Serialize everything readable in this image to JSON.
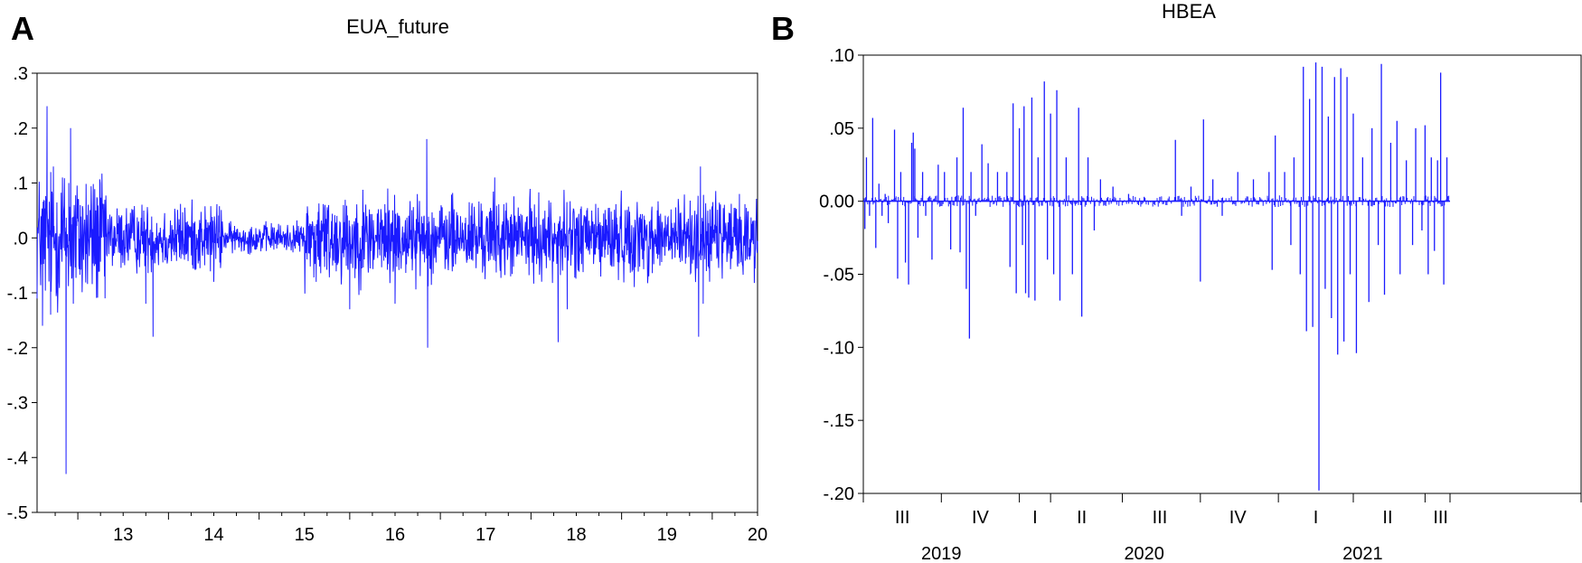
{
  "figure": {
    "panel_labels": [
      "A",
      "B"
    ]
  },
  "chart_data": [
    {
      "type": "line",
      "panel": "A",
      "title": "EUA_future",
      "xlabel": "",
      "ylabel": "",
      "ylim": [
        -0.5,
        0.3
      ],
      "yticks": [
        {
          "value": 0.3,
          "label": ".3"
        },
        {
          "value": 0.2,
          "label": ".2"
        },
        {
          "value": 0.1,
          "label": ".1"
        },
        {
          "value": 0.0,
          "label": ".0"
        },
        {
          "value": -0.1,
          "label": "-.1"
        },
        {
          "value": -0.2,
          "label": "-.2"
        },
        {
          "value": -0.3,
          "label": "-.3"
        },
        {
          "value": -0.4,
          "label": "-.4"
        },
        {
          "value": -0.5,
          "label": "-.5"
        }
      ],
      "xlim": [
        2012.55,
        2020.5
      ],
      "xticks": [
        {
          "value": 2013.0,
          "label": "13"
        },
        {
          "value": 2014.0,
          "label": "14"
        },
        {
          "value": 2015.0,
          "label": "15"
        },
        {
          "value": 2016.0,
          "label": "16"
        },
        {
          "value": 2017.0,
          "label": "17"
        },
        {
          "value": 2018.0,
          "label": "18"
        },
        {
          "value": 2019.0,
          "label": "19"
        },
        {
          "value": 2020.0,
          "label": "20"
        }
      ],
      "series_color": "#1a1aff",
      "grid": false,
      "noise_segments": [
        {
          "from": 2012.55,
          "to": 2013.3,
          "amp": 0.06
        },
        {
          "from": 2013.3,
          "to": 2014.6,
          "amp": 0.03
        },
        {
          "from": 2014.6,
          "to": 2015.5,
          "amp": 0.013
        },
        {
          "from": 2015.5,
          "to": 2016.6,
          "amp": 0.04
        },
        {
          "from": 2016.6,
          "to": 2020.5,
          "amp": 0.035
        }
      ],
      "spikes": [
        {
          "x": 2012.61,
          "y": -0.16
        },
        {
          "x": 2012.66,
          "y": 0.24
        },
        {
          "x": 2012.7,
          "y": -0.14
        },
        {
          "x": 2012.73,
          "y": 0.13
        },
        {
          "x": 2012.78,
          "y": -0.1
        },
        {
          "x": 2012.83,
          "y": 0.11
        },
        {
          "x": 2012.87,
          "y": -0.43
        },
        {
          "x": 2012.9,
          "y": 0.1
        },
        {
          "x": 2012.92,
          "y": 0.2
        },
        {
          "x": 2012.95,
          "y": -0.12
        },
        {
          "x": 2013.05,
          "y": -0.07
        },
        {
          "x": 2013.3,
          "y": -0.11
        },
        {
          "x": 2013.75,
          "y": -0.12
        },
        {
          "x": 2013.83,
          "y": -0.18
        },
        {
          "x": 2014.5,
          "y": -0.08
        },
        {
          "x": 2015.63,
          "y": -0.08
        },
        {
          "x": 2016.0,
          "y": -0.13
        },
        {
          "x": 2016.5,
          "y": -0.12
        },
        {
          "x": 2016.85,
          "y": 0.18
        },
        {
          "x": 2016.86,
          "y": -0.2
        },
        {
          "x": 2017.6,
          "y": 0.11
        },
        {
          "x": 2018.3,
          "y": -0.19
        },
        {
          "x": 2018.4,
          "y": -0.13
        },
        {
          "x": 2019.3,
          "y": -0.07
        },
        {
          "x": 2019.85,
          "y": -0.18
        },
        {
          "x": 2019.87,
          "y": 0.13
        },
        {
          "x": 2019.9,
          "y": -0.12
        },
        {
          "x": 2020.3,
          "y": 0.08
        }
      ]
    },
    {
      "type": "bar",
      "panel": "B",
      "title": "HBEA",
      "xlabel": "",
      "ylabel": "",
      "ylim": [
        -0.2,
        0.1
      ],
      "yticks": [
        {
          "value": 0.1,
          "label": ".10"
        },
        {
          "value": 0.05,
          "label": ".05"
        },
        {
          "value": 0.0,
          "label": "0.00"
        },
        {
          "value": -0.05,
          "label": "-.05"
        },
        {
          "value": -0.1,
          "label": "-.10"
        },
        {
          "value": -0.15,
          "label": "-.15"
        },
        {
          "value": -0.2,
          "label": "-.20"
        }
      ],
      "xlim": [
        2019.5,
        2021.8
      ],
      "quarter_labels": [
        {
          "value": 2019.625,
          "label": "III"
        },
        {
          "value": 2019.875,
          "label": "IV"
        },
        {
          "value": 2020.05,
          "label": "I"
        },
        {
          "value": 2020.2,
          "label": "II"
        },
        {
          "value": 2020.45,
          "label": "III"
        },
        {
          "value": 2020.7,
          "label": "IV"
        },
        {
          "value": 2020.95,
          "label": "I"
        },
        {
          "value": 2021.18,
          "label": "II"
        },
        {
          "value": 2021.35,
          "label": "III"
        }
      ],
      "boundary_ticks": [
        2019.5,
        2019.75,
        2020.0,
        2020.1,
        2020.33,
        2020.58,
        2020.83,
        2021.07,
        2021.3,
        2021.38,
        2021.8
      ],
      "year_labels": [
        {
          "value": 2019.75,
          "label": "2019"
        },
        {
          "value": 2020.4,
          "label": "2020"
        },
        {
          "value": 2021.1,
          "label": "2021"
        }
      ],
      "series_color": "#1a1aff",
      "grid": false,
      "bars": [
        {
          "x": 2019.505,
          "y": -0.019
        },
        {
          "x": 2019.51,
          "y": 0.03
        },
        {
          "x": 2019.52,
          "y": -0.01
        },
        {
          "x": 2019.53,
          "y": 0.057
        },
        {
          "x": 2019.54,
          "y": -0.032
        },
        {
          "x": 2019.55,
          "y": 0.012
        },
        {
          "x": 2019.56,
          "y": -0.01
        },
        {
          "x": 2019.57,
          "y": 0.005
        },
        {
          "x": 2019.58,
          "y": -0.015
        },
        {
          "x": 2019.6,
          "y": 0.049
        },
        {
          "x": 2019.61,
          "y": -0.053
        },
        {
          "x": 2019.62,
          "y": 0.02
        },
        {
          "x": 2019.635,
          "y": -0.042
        },
        {
          "x": 2019.645,
          "y": -0.057
        },
        {
          "x": 2019.655,
          "y": 0.04
        },
        {
          "x": 2019.66,
          "y": 0.047
        },
        {
          "x": 2019.665,
          "y": 0.036
        },
        {
          "x": 2019.675,
          "y": -0.025
        },
        {
          "x": 2019.69,
          "y": 0.02
        },
        {
          "x": 2019.7,
          "y": -0.01
        },
        {
          "x": 2019.72,
          "y": -0.04
        },
        {
          "x": 2019.74,
          "y": 0.025
        },
        {
          "x": 2019.76,
          "y": 0.02
        },
        {
          "x": 2019.78,
          "y": -0.033
        },
        {
          "x": 2019.8,
          "y": 0.03
        },
        {
          "x": 2019.81,
          "y": -0.035
        },
        {
          "x": 2019.82,
          "y": 0.064
        },
        {
          "x": 2019.83,
          "y": -0.06
        },
        {
          "x": 2019.84,
          "y": -0.094
        },
        {
          "x": 2019.845,
          "y": 0.02
        },
        {
          "x": 2019.86,
          "y": -0.01
        },
        {
          "x": 2019.88,
          "y": 0.039
        },
        {
          "x": 2019.9,
          "y": 0.026
        },
        {
          "x": 2019.93,
          "y": 0.02
        },
        {
          "x": 2019.96,
          "y": 0.02
        },
        {
          "x": 2019.97,
          "y": -0.045
        },
        {
          "x": 2019.98,
          "y": 0.067
        },
        {
          "x": 2019.99,
          "y": -0.063
        },
        {
          "x": 2020.0,
          "y": 0.05
        },
        {
          "x": 2020.01,
          "y": -0.03
        },
        {
          "x": 2020.015,
          "y": 0.065
        },
        {
          "x": 2020.02,
          "y": -0.063
        },
        {
          "x": 2020.03,
          "y": -0.066
        },
        {
          "x": 2020.04,
          "y": 0.071
        },
        {
          "x": 2020.05,
          "y": -0.068
        },
        {
          "x": 2020.06,
          "y": 0.03
        },
        {
          "x": 2020.08,
          "y": 0.082
        },
        {
          "x": 2020.09,
          "y": -0.04
        },
        {
          "x": 2020.1,
          "y": 0.06
        },
        {
          "x": 2020.11,
          "y": -0.05
        },
        {
          "x": 2020.12,
          "y": 0.076
        },
        {
          "x": 2020.13,
          "y": -0.068
        },
        {
          "x": 2020.15,
          "y": 0.03
        },
        {
          "x": 2020.17,
          "y": -0.05
        },
        {
          "x": 2020.19,
          "y": 0.064
        },
        {
          "x": 2020.2,
          "y": -0.079
        },
        {
          "x": 2020.22,
          "y": 0.03
        },
        {
          "x": 2020.24,
          "y": -0.02
        },
        {
          "x": 2020.26,
          "y": 0.015
        },
        {
          "x": 2020.3,
          "y": 0.01
        },
        {
          "x": 2020.35,
          "y": 0.005
        },
        {
          "x": 2020.4,
          "y": 0.003
        },
        {
          "x": 2020.45,
          "y": 0.003
        },
        {
          "x": 2020.5,
          "y": 0.042
        },
        {
          "x": 2020.52,
          "y": -0.01
        },
        {
          "x": 2020.55,
          "y": 0.01
        },
        {
          "x": 2020.58,
          "y": -0.055
        },
        {
          "x": 2020.59,
          "y": 0.056
        },
        {
          "x": 2020.62,
          "y": 0.015
        },
        {
          "x": 2020.65,
          "y": -0.01
        },
        {
          "x": 2020.7,
          "y": 0.02
        },
        {
          "x": 2020.75,
          "y": 0.015
        },
        {
          "x": 2020.8,
          "y": 0.02
        },
        {
          "x": 2020.81,
          "y": -0.047
        },
        {
          "x": 2020.82,
          "y": 0.045
        },
        {
          "x": 2020.85,
          "y": 0.02
        },
        {
          "x": 2020.87,
          "y": -0.03
        },
        {
          "x": 2020.88,
          "y": 0.03
        },
        {
          "x": 2020.9,
          "y": -0.05
        },
        {
          "x": 2020.91,
          "y": 0.092
        },
        {
          "x": 2020.92,
          "y": -0.089
        },
        {
          "x": 2020.93,
          "y": 0.07
        },
        {
          "x": 2020.94,
          "y": -0.086
        },
        {
          "x": 2020.95,
          "y": 0.095
        },
        {
          "x": 2020.96,
          "y": -0.198
        },
        {
          "x": 2020.97,
          "y": 0.092
        },
        {
          "x": 2020.98,
          "y": -0.06
        },
        {
          "x": 2020.99,
          "y": 0.058
        },
        {
          "x": 2021.0,
          "y": -0.08
        },
        {
          "x": 2021.01,
          "y": 0.085
        },
        {
          "x": 2021.02,
          "y": -0.105
        },
        {
          "x": 2021.03,
          "y": 0.091
        },
        {
          "x": 2021.04,
          "y": -0.096
        },
        {
          "x": 2021.05,
          "y": 0.085
        },
        {
          "x": 2021.06,
          "y": -0.05
        },
        {
          "x": 2021.07,
          "y": 0.06
        },
        {
          "x": 2021.08,
          "y": -0.104
        },
        {
          "x": 2021.1,
          "y": 0.03
        },
        {
          "x": 2021.12,
          "y": -0.069
        },
        {
          "x": 2021.13,
          "y": 0.05
        },
        {
          "x": 2021.15,
          "y": -0.03
        },
        {
          "x": 2021.16,
          "y": 0.094
        },
        {
          "x": 2021.17,
          "y": -0.064
        },
        {
          "x": 2021.19,
          "y": 0.04
        },
        {
          "x": 2021.21,
          "y": 0.055
        },
        {
          "x": 2021.22,
          "y": -0.05
        },
        {
          "x": 2021.24,
          "y": 0.028
        },
        {
          "x": 2021.26,
          "y": -0.03
        },
        {
          "x": 2021.27,
          "y": 0.05
        },
        {
          "x": 2021.29,
          "y": -0.02
        },
        {
          "x": 2021.3,
          "y": 0.052
        },
        {
          "x": 2021.31,
          "y": -0.05
        },
        {
          "x": 2021.32,
          "y": 0.03
        },
        {
          "x": 2021.33,
          "y": -0.034
        },
        {
          "x": 2021.34,
          "y": 0.028
        },
        {
          "x": 2021.35,
          "y": 0.088
        },
        {
          "x": 2021.36,
          "y": -0.057
        },
        {
          "x": 2021.37,
          "y": 0.03
        }
      ],
      "small_noise": {
        "from": 2019.5,
        "to": 2021.38,
        "amp": 0.004
      }
    }
  ]
}
